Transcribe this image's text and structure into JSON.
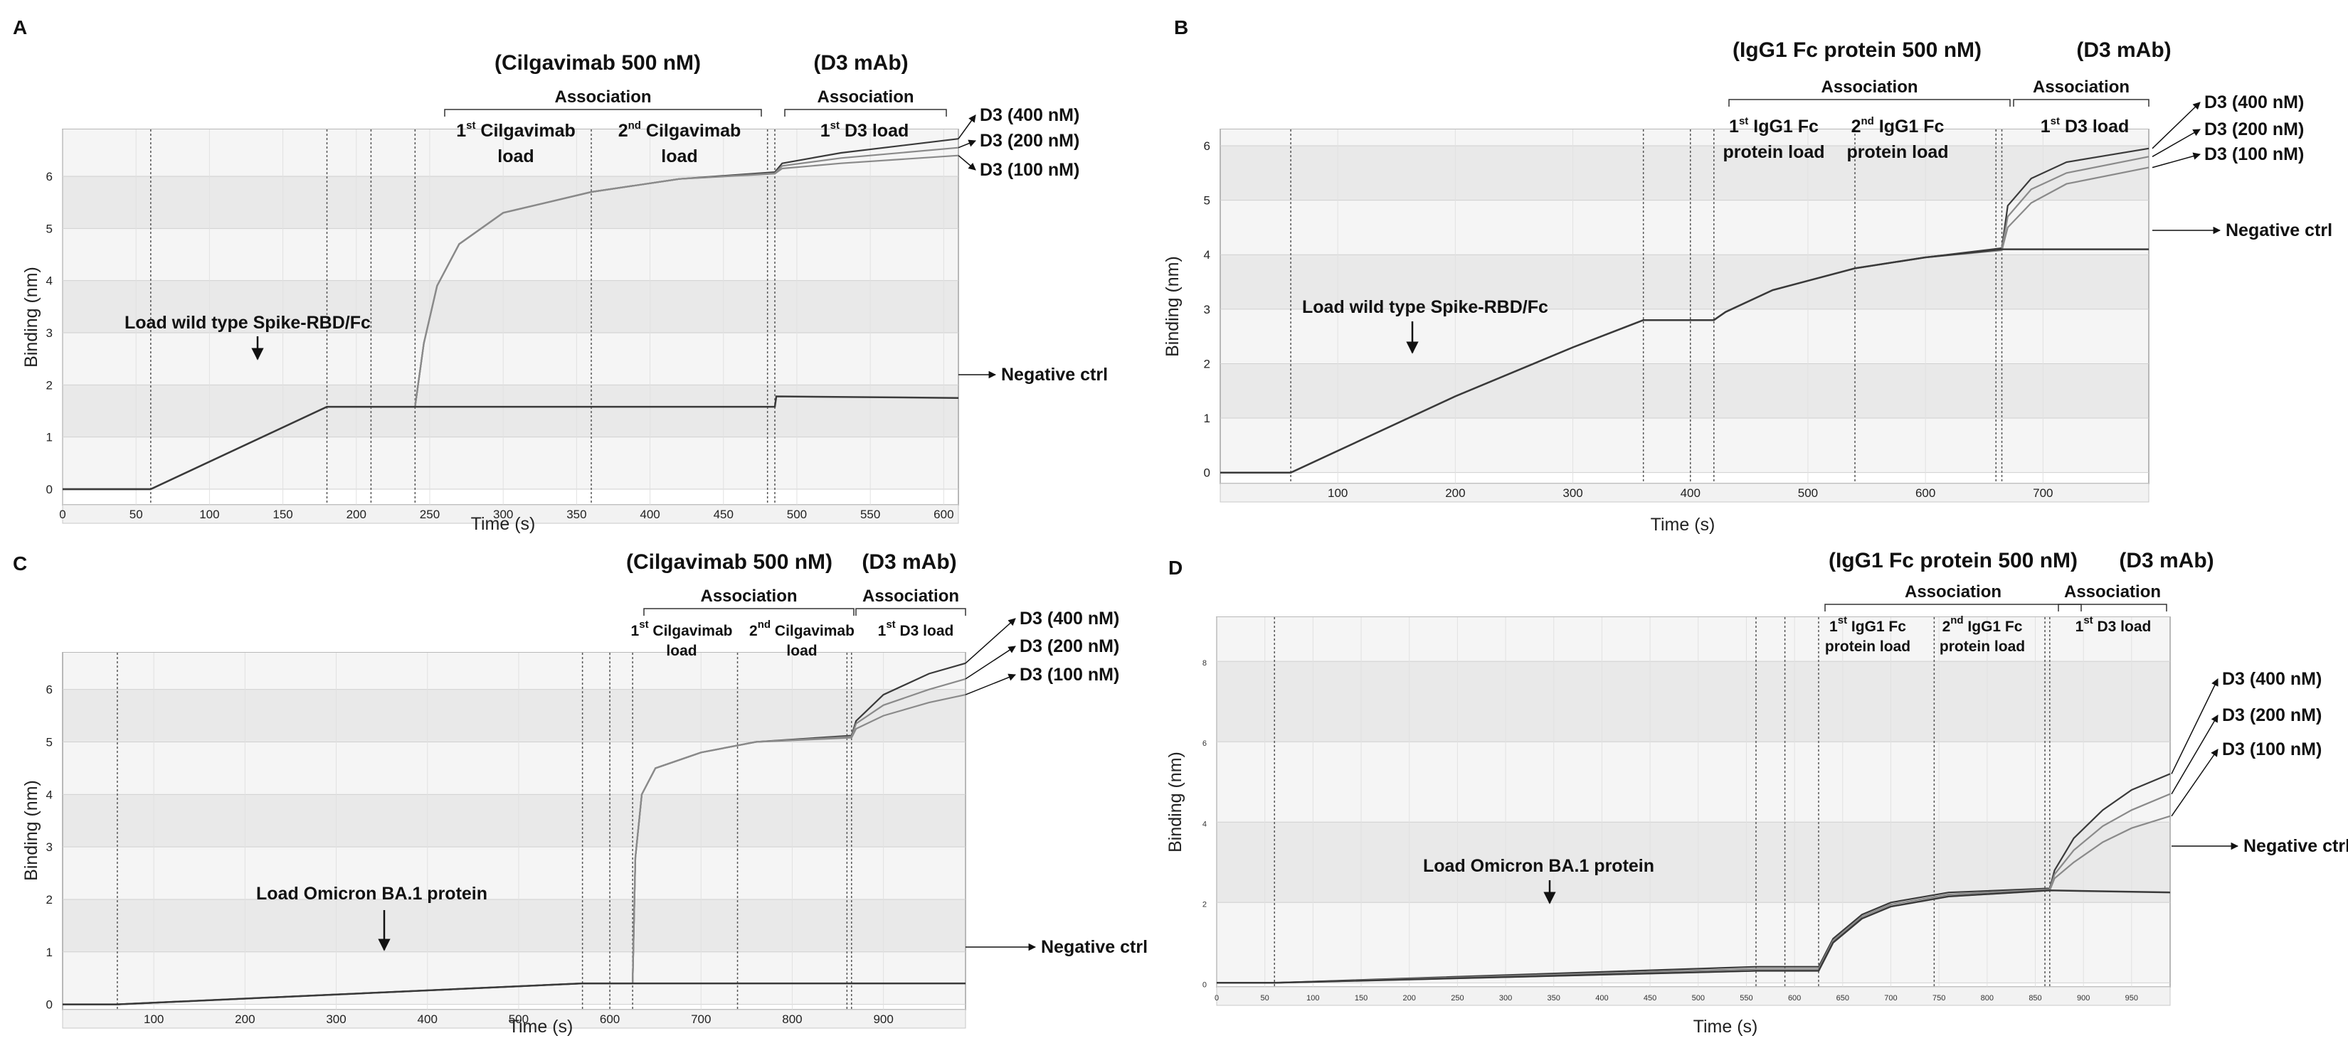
{
  "colors": {
    "curve": "#3a3a3a",
    "curve_light": "#8a8a8a",
    "band_dark": "#e9e9e9",
    "band_light": "#f5f5f5",
    "text": "#111111"
  },
  "chart_data": [
    {
      "panel": "A",
      "type": "line",
      "title": "(Cilgavimab 500 nM)",
      "title2": "(D3 mAb)",
      "xlabel": "Time (s)",
      "ylabel": "Binding (nm)",
      "xlim": [
        0,
        610
      ],
      "ylim": [
        -0.3,
        6.9
      ],
      "xticks": [
        0,
        50,
        100,
        150,
        200,
        250,
        300,
        350,
        400,
        450,
        500,
        550,
        600
      ],
      "yticks": [
        0,
        1,
        2,
        3,
        4,
        5,
        6
      ],
      "dividers": [
        60,
        180,
        210,
        240,
        360,
        480,
        485
      ],
      "series": [
        {
          "name": "D3 (400 nM)",
          "x": [
            0,
            60,
            180,
            240,
            246,
            255,
            270,
            300,
            360,
            420,
            485,
            490,
            530,
            610
          ],
          "y": [
            0,
            0,
            1.58,
            1.58,
            2.8,
            3.9,
            4.7,
            5.3,
            5.7,
            5.95,
            6.08,
            6.25,
            6.45,
            6.72
          ]
        },
        {
          "name": "D3 (200 nM)",
          "x": [
            0,
            60,
            180,
            240,
            246,
            255,
            270,
            300,
            360,
            420,
            485,
            490,
            530,
            610
          ],
          "y": [
            0,
            0,
            1.58,
            1.58,
            2.8,
            3.9,
            4.7,
            5.3,
            5.7,
            5.95,
            6.06,
            6.2,
            6.35,
            6.55
          ]
        },
        {
          "name": "D3 (100 nM)",
          "x": [
            0,
            60,
            180,
            240,
            246,
            255,
            270,
            300,
            360,
            420,
            485,
            490,
            530,
            610
          ],
          "y": [
            0,
            0,
            1.58,
            1.58,
            2.8,
            3.9,
            4.7,
            5.3,
            5.7,
            5.95,
            6.05,
            6.15,
            6.25,
            6.4
          ]
        },
        {
          "name": "Negative ctrl",
          "x": [
            0,
            60,
            180,
            485,
            486,
            610
          ],
          "y": [
            0,
            0,
            1.58,
            1.58,
            1.78,
            1.75
          ]
        }
      ],
      "annotations": {
        "association1": "Association",
        "association2": "Association",
        "load1_pre": "1",
        "load1_sup": "st",
        "load1_post": " Cilgavimab",
        "load1_line2": "load",
        "load2_pre": "2",
        "load2_sup": "nd",
        "load2_post": " Cilgavimab",
        "load2_line2": "load",
        "d3_pre": "1",
        "d3_sup": "st",
        "d3_post": " D3 load",
        "load_target": "Load wild type Spike-RBD/Fc",
        "label_400": "D3 (400 nM)",
        "label_200": "D3 (200 nM)",
        "label_100": "D3 (100 nM)",
        "label_neg": "Negative ctrl"
      }
    },
    {
      "panel": "B",
      "type": "line",
      "title": "(IgG1 Fc protein 500 nM)",
      "title2": "(D3 mAb)",
      "xlabel": "Time (s)",
      "ylabel": "Binding (nm)",
      "xlim": [
        0,
        790
      ],
      "ylim": [
        -0.2,
        6.3
      ],
      "xticks": [
        100,
        200,
        300,
        400,
        500,
        600,
        700
      ],
      "yticks": [
        0,
        1,
        2,
        3,
        4,
        5,
        6
      ],
      "dividers": [
        60,
        360,
        400,
        420,
        540,
        660,
        665
      ],
      "series": [
        {
          "name": "D3 (400 nM)",
          "x": [
            0,
            60,
            200,
            300,
            360,
            420,
            430,
            470,
            540,
            600,
            665,
            670,
            690,
            720,
            790
          ],
          "y": [
            0,
            0,
            1.4,
            2.3,
            2.8,
            2.8,
            2.95,
            3.35,
            3.75,
            3.95,
            4.12,
            4.9,
            5.4,
            5.7,
            5.95
          ]
        },
        {
          "name": "D3 (200 nM)",
          "x": [
            0,
            60,
            200,
            300,
            360,
            420,
            430,
            470,
            540,
            600,
            665,
            670,
            690,
            720,
            790
          ],
          "y": [
            0,
            0,
            1.4,
            2.3,
            2.8,
            2.8,
            2.95,
            3.35,
            3.75,
            3.95,
            4.1,
            4.7,
            5.2,
            5.5,
            5.8
          ]
        },
        {
          "name": "D3 (100 nM)",
          "x": [
            0,
            60,
            200,
            300,
            360,
            420,
            430,
            470,
            540,
            600,
            665,
            670,
            690,
            720,
            790
          ],
          "y": [
            0,
            0,
            1.4,
            2.3,
            2.8,
            2.8,
            2.95,
            3.35,
            3.75,
            3.95,
            4.08,
            4.5,
            4.95,
            5.3,
            5.6
          ]
        },
        {
          "name": "Negative ctrl",
          "x": [
            0,
            60,
            200,
            300,
            360,
            420,
            430,
            470,
            540,
            600,
            665,
            790
          ],
          "y": [
            0,
            0,
            1.4,
            2.3,
            2.8,
            2.8,
            2.95,
            3.35,
            3.75,
            3.95,
            4.1,
            4.1
          ]
        }
      ],
      "annotations": {
        "association1": "Association",
        "association2": "Association",
        "load1_pre": "1",
        "load1_sup": "st",
        "load1_post": " IgG1 Fc",
        "load1_line2": "protein  load",
        "load2_pre": "2",
        "load2_sup": "nd",
        "load2_post": " IgG1 Fc",
        "load2_line2": "protein  load",
        "d3_pre": "1",
        "d3_sup": "st",
        "d3_post": " D3 load",
        "load_target": "Load wild type Spike-RBD/Fc",
        "label_400": "D3 (400 nM)",
        "label_200": "D3 (200 nM)",
        "label_100": "D3 (100 nM)",
        "label_neg": "Negative ctrl"
      }
    },
    {
      "panel": "C",
      "type": "line",
      "title": "(Cilgavimab 500 nM)",
      "title2": "(D3 mAb)",
      "xlabel": "Time (s)",
      "ylabel": "Binding (nm)",
      "xlim": [
        0,
        990
      ],
      "ylim": [
        -0.1,
        6.7
      ],
      "xticks": [
        100,
        200,
        300,
        400,
        500,
        600,
        700,
        800,
        900
      ],
      "yticks": [
        0,
        1,
        2,
        3,
        4,
        5,
        6
      ],
      "dividers": [
        60,
        570,
        600,
        625,
        740,
        860,
        865
      ],
      "series": [
        {
          "name": "D3 (400 nM)",
          "x": [
            0,
            60,
            570,
            625,
            628,
            635,
            650,
            700,
            760,
            865,
            870,
            900,
            950,
            990
          ],
          "y": [
            0,
            0,
            0.4,
            0.4,
            2.8,
            4.0,
            4.5,
            4.8,
            5.0,
            5.12,
            5.4,
            5.9,
            6.3,
            6.5
          ]
        },
        {
          "name": "D3 (200 nM)",
          "x": [
            0,
            60,
            570,
            625,
            628,
            635,
            650,
            700,
            760,
            865,
            870,
            900,
            950,
            990
          ],
          "y": [
            0,
            0,
            0.4,
            0.4,
            2.8,
            4.0,
            4.5,
            4.8,
            5.0,
            5.1,
            5.35,
            5.7,
            6.0,
            6.2
          ]
        },
        {
          "name": "D3 (100 nM)",
          "x": [
            0,
            60,
            570,
            625,
            628,
            635,
            650,
            700,
            760,
            865,
            870,
            900,
            950,
            990
          ],
          "y": [
            0,
            0,
            0.4,
            0.4,
            2.8,
            4.0,
            4.5,
            4.8,
            5.0,
            5.08,
            5.25,
            5.5,
            5.75,
            5.9
          ]
        },
        {
          "name": "Negative ctrl",
          "x": [
            0,
            60,
            570,
            625,
            990
          ],
          "y": [
            0,
            0,
            0.4,
            0.4,
            0.4
          ]
        }
      ],
      "annotations": {
        "association1": "Association",
        "association2": "Association",
        "load1_pre": "1",
        "load1_sup": "st",
        "load1_post": " Cilgavimab",
        "load1_line2": "load",
        "load2_pre": "2",
        "load2_sup": "nd",
        "load2_post": " Cilgavimab",
        "load2_line2": "load",
        "d3_pre": "1",
        "d3_sup": "st",
        "d3_post": " D3 load",
        "load_target": "Load Omicron BA.1 protein",
        "label_400": "D3 (400 nM)",
        "label_200": "D3 (200 nM)",
        "label_100": "D3 (100 nM)",
        "label_neg": "Negative ctrl"
      }
    },
    {
      "panel": "D",
      "type": "line",
      "title": "(IgG1 Fc protein 500 nM)",
      "title2": "(D3 mAb)",
      "xlabel": "Time (s)",
      "ylabel": "Binding (nm)",
      "xlim": [
        0,
        990
      ],
      "ylim": [
        -0.1,
        9.1
      ],
      "xticks": [
        0,
        50,
        100,
        150,
        200,
        250,
        300,
        350,
        400,
        450,
        500,
        550,
        600,
        650,
        700,
        750,
        800,
        850,
        900,
        950
      ],
      "yticks": [
        0,
        2,
        4,
        6,
        8
      ],
      "dividers": [
        60,
        560,
        590,
        625,
        745,
        860,
        865
      ],
      "series": [
        {
          "name": "D3 (400 nM)",
          "x": [
            0,
            60,
            560,
            625,
            640,
            670,
            700,
            760,
            865,
            870,
            890,
            920,
            950,
            990
          ],
          "y": [
            0,
            0,
            0.4,
            0.4,
            1.1,
            1.7,
            2.0,
            2.25,
            2.35,
            2.8,
            3.6,
            4.3,
            4.8,
            5.2
          ]
        },
        {
          "name": "D3 (200 nM)",
          "x": [
            0,
            60,
            560,
            625,
            640,
            670,
            700,
            760,
            865,
            870,
            890,
            920,
            950,
            990
          ],
          "y": [
            0,
            0,
            0.35,
            0.35,
            1.05,
            1.65,
            1.95,
            2.2,
            2.33,
            2.7,
            3.3,
            3.9,
            4.3,
            4.7
          ]
        },
        {
          "name": "D3 (100 nM)",
          "x": [
            0,
            60,
            560,
            625,
            640,
            670,
            700,
            760,
            865,
            870,
            890,
            920,
            950,
            990
          ],
          "y": [
            0,
            0,
            0.3,
            0.3,
            1.0,
            1.6,
            1.9,
            2.15,
            2.3,
            2.6,
            3.0,
            3.5,
            3.85,
            4.15
          ]
        },
        {
          "name": "Negative ctrl",
          "x": [
            0,
            60,
            560,
            625,
            640,
            670,
            700,
            760,
            865,
            990
          ],
          "y": [
            0,
            0,
            0.3,
            0.3,
            1.0,
            1.6,
            1.9,
            2.15,
            2.3,
            2.25
          ]
        }
      ],
      "annotations": {
        "association1": "Association",
        "association2": "Association",
        "load1_pre": "1",
        "load1_sup": "st",
        "load1_post": " IgG1 Fc",
        "load1_line2": "protein  load",
        "load2_pre": "2",
        "load2_sup": "nd",
        "load2_post": " IgG1 Fc",
        "load2_line2": "protein  load",
        "d3_pre": "1",
        "d3_sup": "st",
        "d3_post": " D3 load",
        "load_target": "Load Omicron BA.1 protein",
        "label_400": "D3 (400 nM)",
        "label_200": "D3 (200 nM)",
        "label_100": "D3 (100 nM)",
        "label_neg": "Negative ctrl"
      }
    }
  ]
}
